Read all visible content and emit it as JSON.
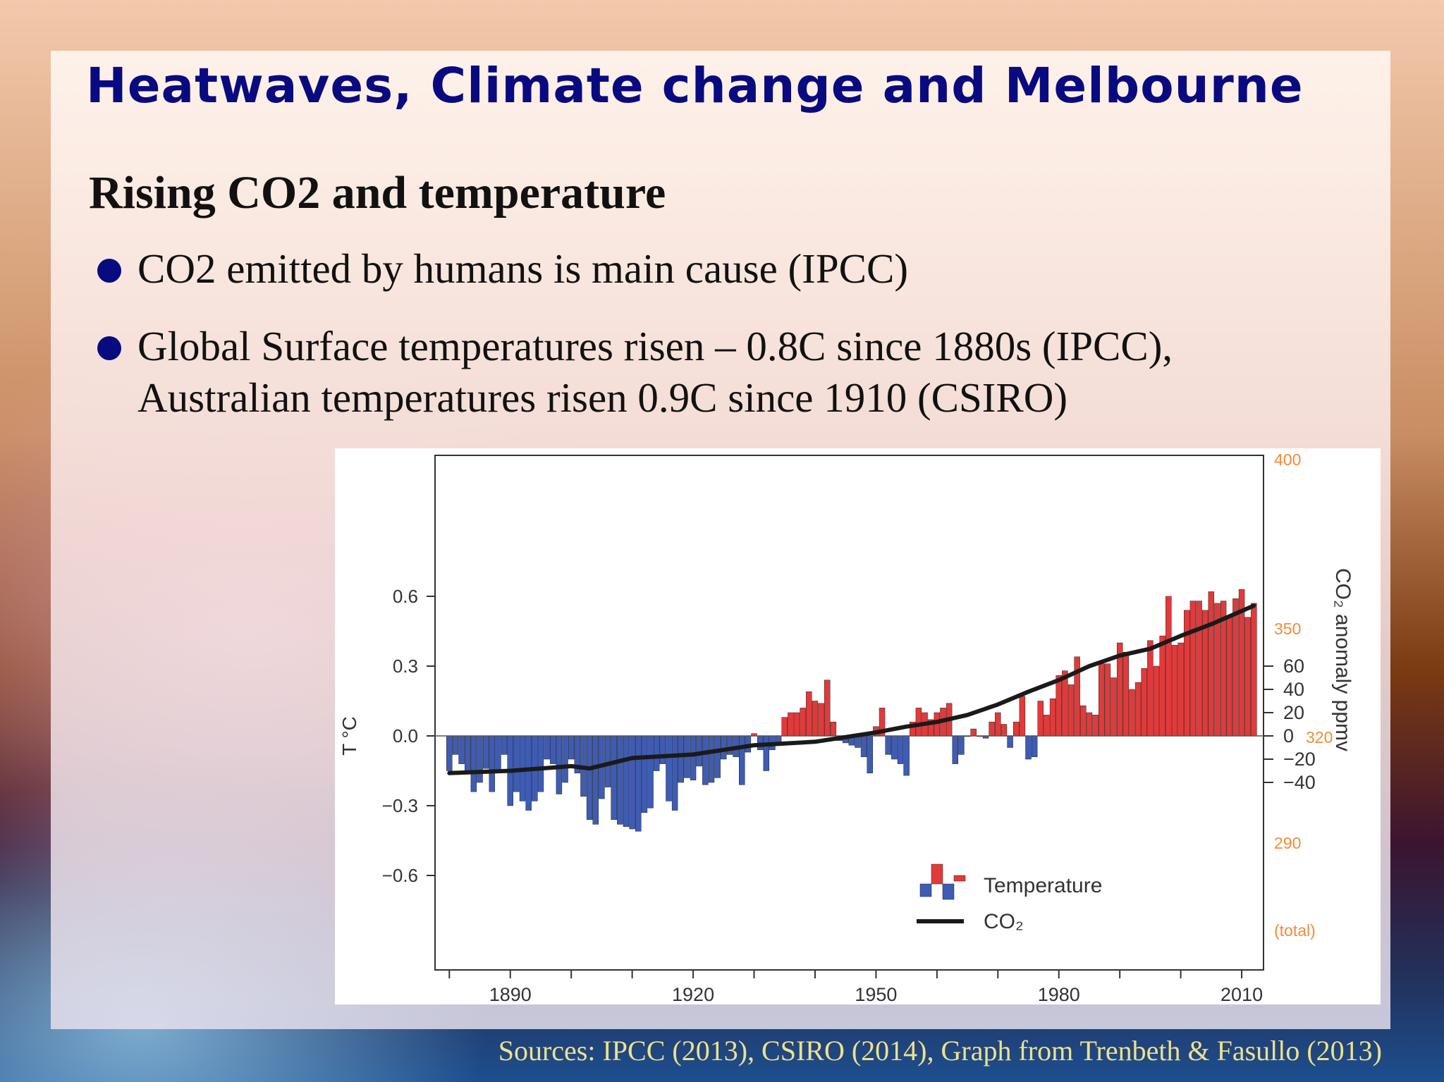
{
  "slide": {
    "title": "Heatwaves, Climate change and Melbourne",
    "subtitle": "Rising CO2 and temperature",
    "bullets": [
      {
        "line1": "CO2 emitted by humans is main cause (IPCC)"
      },
      {
        "line1": "Global Surface temperatures risen – 0.8C since 1880s (IPCC),",
        "line2": "Australian temperatures risen 0.9C since 1910 (CSIRO)"
      }
    ],
    "sources": "Sources: IPCC (2013),  CSIRO (2014), Graph from Trenbeth & Fasullo (2013)"
  },
  "chart_data": {
    "type": "bar",
    "xlim": [
      1878,
      2013
    ],
    "ylim": [
      -0.6,
      0.7
    ],
    "ylabel": "T °C",
    "y_ticks": [
      "0.6",
      "0.3",
      "0.0",
      "−0.3",
      "−0.6"
    ],
    "y_tick_values": [
      0.6,
      0.3,
      0.0,
      -0.3,
      -0.6
    ],
    "x_ticks": [
      "1890",
      "1920",
      "1950",
      "1980",
      "2010"
    ],
    "x_tick_values": [
      1890,
      1920,
      1950,
      1980,
      2010
    ],
    "y2_label": "CO₂ anomaly ppmv",
    "y2_ticks_anomaly": [
      "60",
      "40",
      "20",
      "0",
      "−20",
      "−40"
    ],
    "y2_tick_anomaly_values": [
      60,
      40,
      20,
      0,
      -20,
      -40
    ],
    "y2_ticks_total": [
      "400",
      "350",
      "320",
      "290",
      "(total)"
    ],
    "legend": [
      "Temperature",
      "CO₂"
    ],
    "legend_position": "bottom-right",
    "colors": {
      "positive": "#e23a3a",
      "negative": "#3e5cb4",
      "co2_line": "#1a1a1a",
      "total_axis": "#f58a3a"
    },
    "series": [
      {
        "name": "Temperature",
        "years": [
          1880,
          1881,
          1882,
          1883,
          1884,
          1885,
          1886,
          1887,
          1888,
          1889,
          1890,
          1891,
          1892,
          1893,
          1894,
          1895,
          1896,
          1897,
          1898,
          1899,
          1900,
          1901,
          1902,
          1903,
          1904,
          1905,
          1906,
          1907,
          1908,
          1909,
          1910,
          1911,
          1912,
          1913,
          1914,
          1915,
          1916,
          1917,
          1918,
          1919,
          1920,
          1921,
          1922,
          1923,
          1924,
          1925,
          1926,
          1927,
          1928,
          1929,
          1930,
          1931,
          1932,
          1933,
          1934,
          1935,
          1936,
          1937,
          1938,
          1939,
          1940,
          1941,
          1942,
          1943,
          1944,
          1945,
          1946,
          1947,
          1948,
          1949,
          1950,
          1951,
          1952,
          1953,
          1954,
          1955,
          1956,
          1957,
          1958,
          1959,
          1960,
          1961,
          1962,
          1963,
          1964,
          1965,
          1966,
          1967,
          1968,
          1969,
          1970,
          1971,
          1972,
          1973,
          1974,
          1975,
          1976,
          1977,
          1978,
          1979,
          1980,
          1981,
          1982,
          1983,
          1984,
          1985,
          1986,
          1987,
          1988,
          1989,
          1990,
          1991,
          1992,
          1993,
          1994,
          1995,
          1996,
          1997,
          1998,
          1999,
          2000,
          2001,
          2002,
          2003,
          2004,
          2005,
          2006,
          2007,
          2008,
          2009,
          2010,
          2011,
          2012
        ],
        "values": [
          -0.15,
          -0.08,
          -0.12,
          -0.16,
          -0.24,
          -0.2,
          -0.14,
          -0.24,
          -0.15,
          -0.08,
          -0.3,
          -0.24,
          -0.28,
          -0.32,
          -0.28,
          -0.24,
          -0.1,
          -0.12,
          -0.25,
          -0.2,
          -0.1,
          -0.16,
          -0.26,
          -0.36,
          -0.38,
          -0.27,
          -0.22,
          -0.36,
          -0.38,
          -0.39,
          -0.4,
          -0.41,
          -0.33,
          -0.31,
          -0.15,
          -0.12,
          -0.28,
          -0.32,
          -0.2,
          -0.18,
          -0.19,
          -0.13,
          -0.21,
          -0.2,
          -0.18,
          -0.1,
          -0.08,
          -0.09,
          -0.21,
          -0.07,
          0.01,
          -0.06,
          -0.15,
          -0.06,
          -0.04,
          0.08,
          0.1,
          0.1,
          0.12,
          0.19,
          0.15,
          0.14,
          0.24,
          0.06,
          -0.02,
          -0.03,
          -0.04,
          -0.05,
          -0.09,
          -0.16,
          0.04,
          0.12,
          -0.08,
          -0.1,
          -0.12,
          -0.17,
          0.06,
          0.12,
          0.1,
          0.07,
          0.1,
          0.12,
          0.14,
          -0.12,
          -0.08,
          0.0,
          0.03,
          0.0,
          -0.01,
          0.06,
          0.1,
          0.05,
          -0.05,
          0.06,
          0.17,
          -0.1,
          -0.09,
          0.15,
          0.09,
          0.16,
          0.26,
          0.28,
          0.22,
          0.34,
          0.13,
          0.1,
          0.09,
          0.31,
          0.31,
          0.25,
          0.4,
          0.36,
          0.2,
          0.23,
          0.29,
          0.41,
          0.3,
          0.43,
          0.6,
          0.39,
          0.4,
          0.54,
          0.58,
          0.58,
          0.54,
          0.62,
          0.57,
          0.58,
          0.51,
          0.59,
          0.63,
          0.51,
          0.57
        ]
      },
      {
        "name": "CO₂",
        "years": [
          1880,
          1890,
          1900,
          1903,
          1910,
          1920,
          1925,
          1930,
          1940,
          1950,
          1955,
          1960,
          1965,
          1970,
          1975,
          1980,
          1985,
          1990,
          1995,
          2000,
          2005,
          2012
        ],
        "values": [
          -32,
          -30,
          -26,
          -28,
          -19,
          -16,
          -12,
          -8,
          -5,
          3,
          8,
          12,
          18,
          27,
          38,
          48,
          60,
          69,
          75,
          86,
          96,
          112
        ]
      }
    ]
  }
}
